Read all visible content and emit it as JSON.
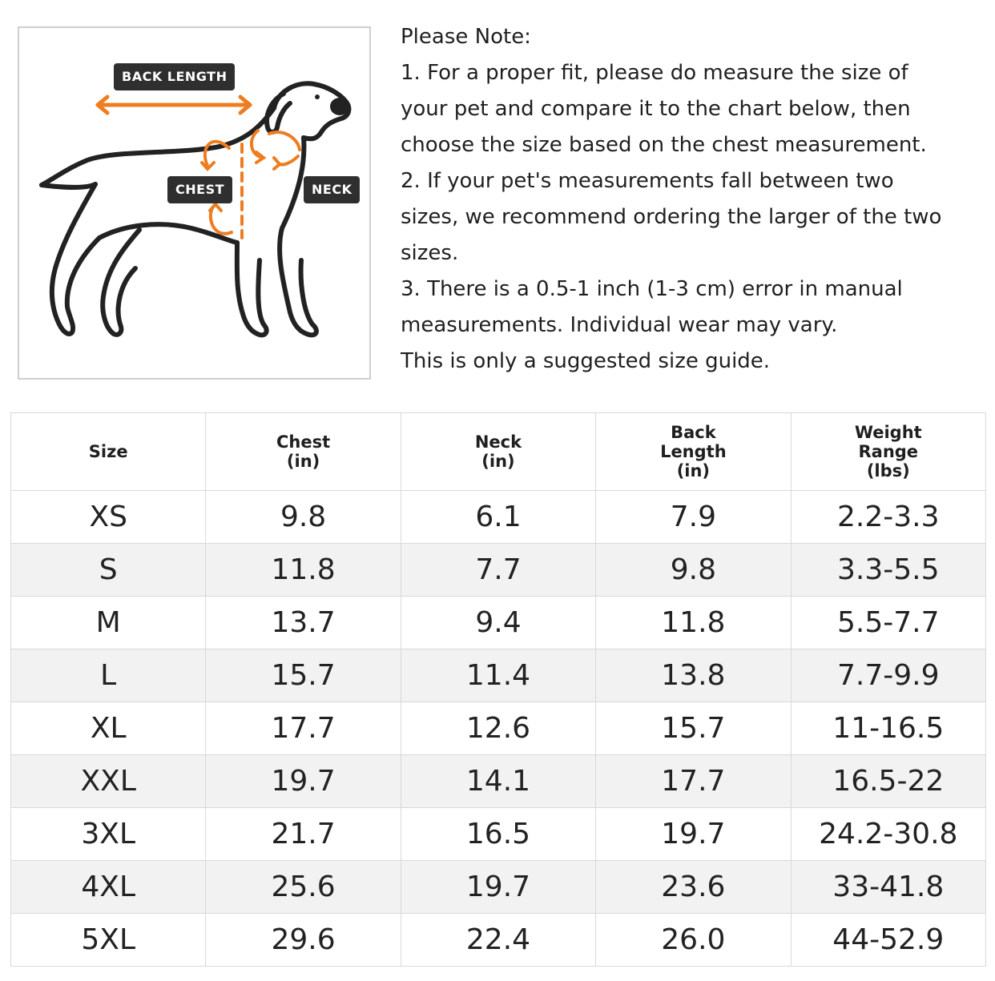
{
  "colors": {
    "accent": "#ee7d22",
    "tag_bg": "#2f2f2f",
    "grid": "#d9d9d9",
    "stripe": "#f2f2f2"
  },
  "diagram": {
    "back_length_label": "BACK LENGTH",
    "chest_label": "CHEST",
    "neck_label": "NECK"
  },
  "notes": {
    "lines": [
      "Please Note:",
      "1. For a proper fit, please do measure the size of",
      "your pet and compare it to the chart below, then",
      "choose the size based on the chest measurement.",
      "2. If your pet's measurements fall between two",
      "sizes, we recommend ordering the larger of the two",
      "sizes.",
      "3. There is a 0.5-1 inch (1-3 cm) error in manual",
      "measurements. Individual wear may vary.",
      "This is only a suggested size guide."
    ]
  },
  "table": {
    "headers": [
      {
        "lines": [
          "Size"
        ]
      },
      {
        "lines": [
          "Chest",
          "(in)"
        ]
      },
      {
        "lines": [
          "Neck",
          "(in)"
        ]
      },
      {
        "lines": [
          "Back",
          "Length",
          "(in)"
        ]
      },
      {
        "lines": [
          "Weight",
          "Range",
          "(lbs)"
        ]
      }
    ],
    "rows": [
      [
        "XS",
        "9.8",
        "6.1",
        "7.9",
        "2.2-3.3"
      ],
      [
        "S",
        "11.8",
        "7.7",
        "9.8",
        "3.3-5.5"
      ],
      [
        "M",
        "13.7",
        "9.4",
        "11.8",
        "5.5-7.7"
      ],
      [
        "L",
        "15.7",
        "11.4",
        "13.8",
        "7.7-9.9"
      ],
      [
        "XL",
        "17.7",
        "12.6",
        "15.7",
        "11-16.5"
      ],
      [
        "XXL",
        "19.7",
        "14.1",
        "17.7",
        "16.5-22"
      ],
      [
        "3XL",
        "21.7",
        "16.5",
        "19.7",
        "24.2-30.8"
      ],
      [
        "4XL",
        "25.6",
        "19.7",
        "23.6",
        "33-41.8"
      ],
      [
        "5XL",
        "29.6",
        "22.4",
        "26.0",
        "44-52.9"
      ]
    ]
  }
}
